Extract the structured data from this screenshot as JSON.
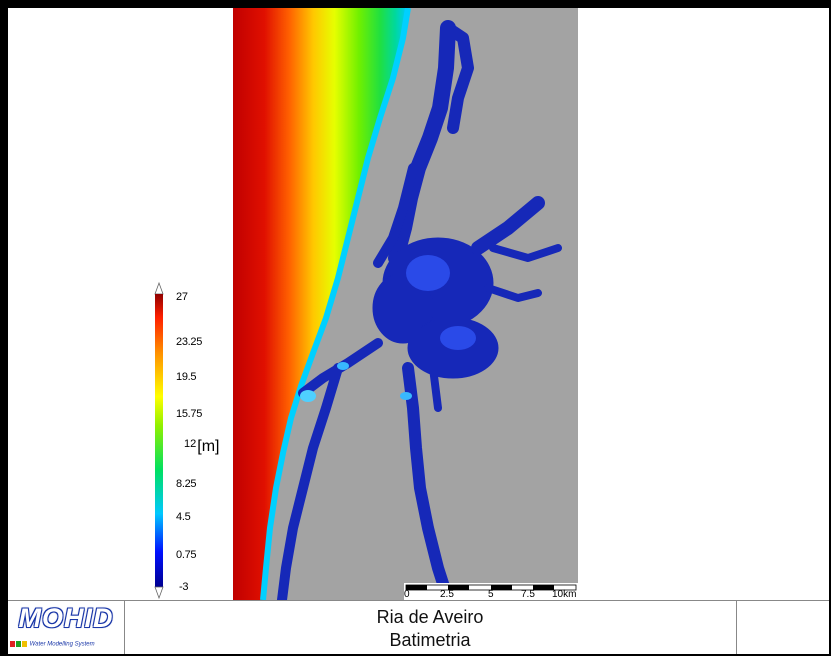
{
  "map": {
    "colors": {
      "land": "#a3a3a3",
      "deep_sea": "#c00000",
      "estuary": "#1628b8"
    }
  },
  "legend": {
    "ticks": [
      "27",
      "23.25",
      "19.5",
      "15.75",
      "12",
      "8.25",
      "4.5",
      "0.75",
      "-3"
    ],
    "unit": "[m]",
    "colors": [
      "#000090",
      "#0010ff",
      "#00c8ff",
      "#00e060",
      "#90f000",
      "#ffff00",
      "#ff9000",
      "#ff2000",
      "#900000"
    ]
  },
  "scale_bar": {
    "labels": [
      "0",
      "2.5",
      "5",
      "7.5",
      "10km"
    ]
  },
  "footer": {
    "logo_text": "MOHID",
    "logo_tagline": "Water Modelling System",
    "title_line1": "Ria de Aveiro",
    "title_line2": "Batimetria"
  }
}
